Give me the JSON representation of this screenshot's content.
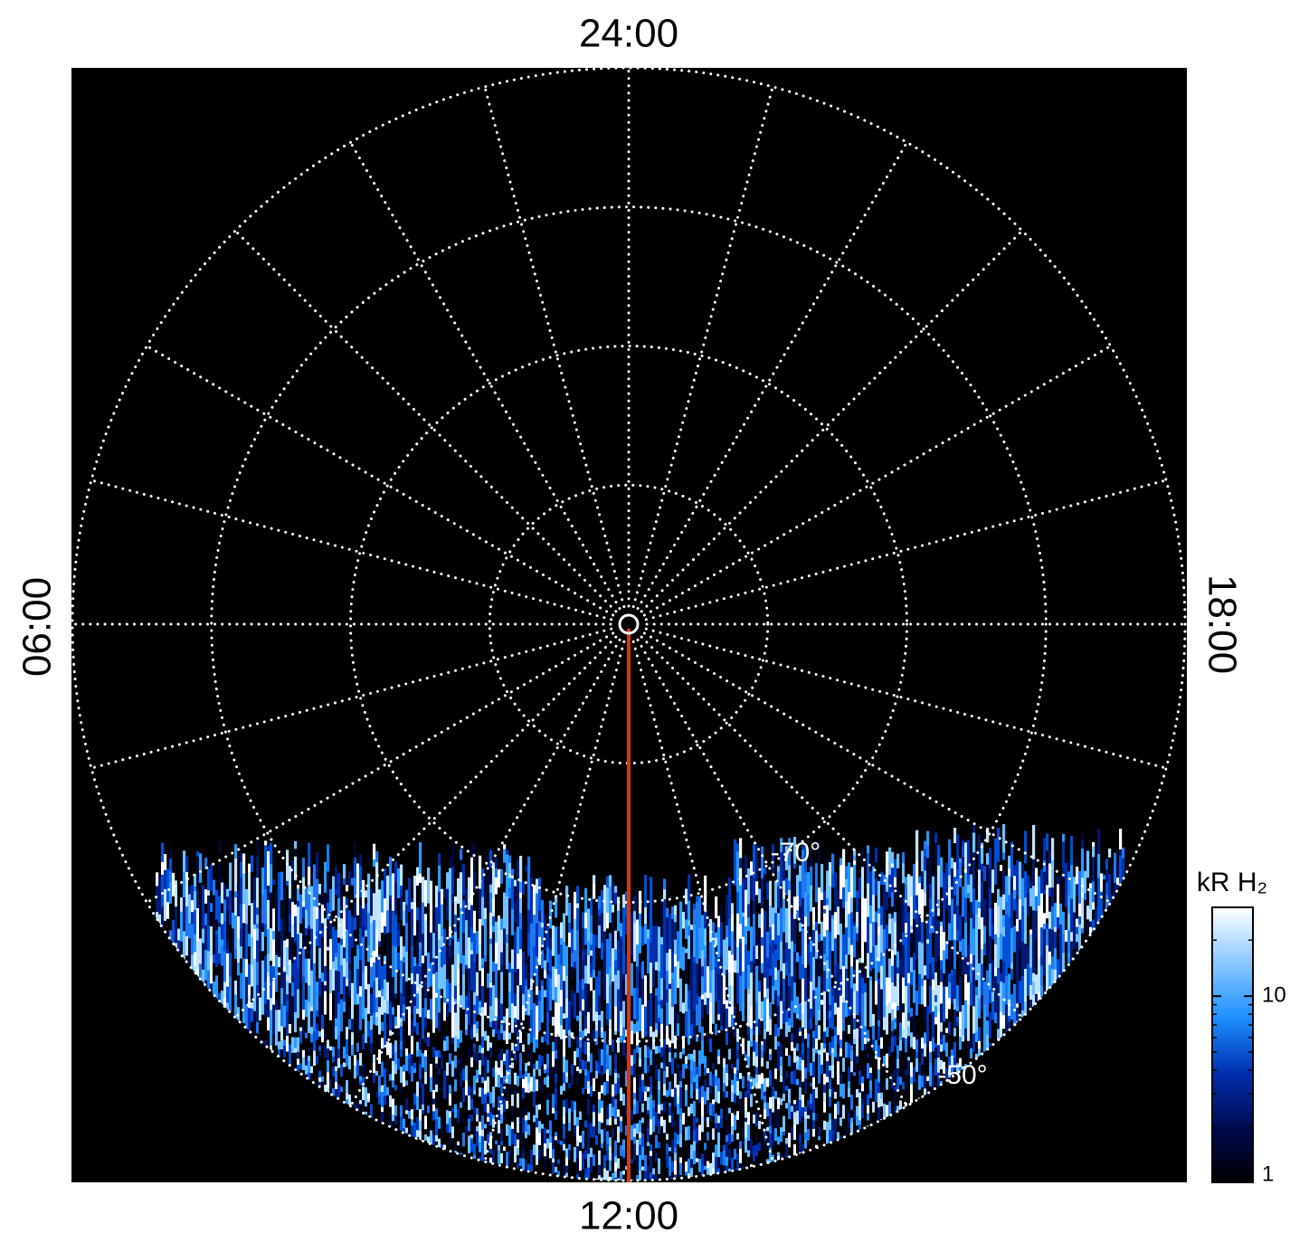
{
  "chart_data": {
    "type": "polar-map",
    "local_time_labels": [
      "24:00",
      "06:00",
      "12:00",
      "18:00"
    ],
    "rlim": [
      -90,
      -50
    ],
    "rgrid": [
      -80,
      -70,
      -60,
      -50
    ],
    "rgrid_labels": [
      null,
      "-70°",
      null,
      "-50°"
    ],
    "colorbar": {
      "label": "kR H₂",
      "scale": "log",
      "lim": [
        1,
        30
      ],
      "ticks": [
        1,
        10
      ],
      "colors": [
        "#000000",
        "#000a50",
        "#0030b0",
        "#1e90ff",
        "#8cc8ff",
        "#ffffff"
      ]
    }
  }
}
